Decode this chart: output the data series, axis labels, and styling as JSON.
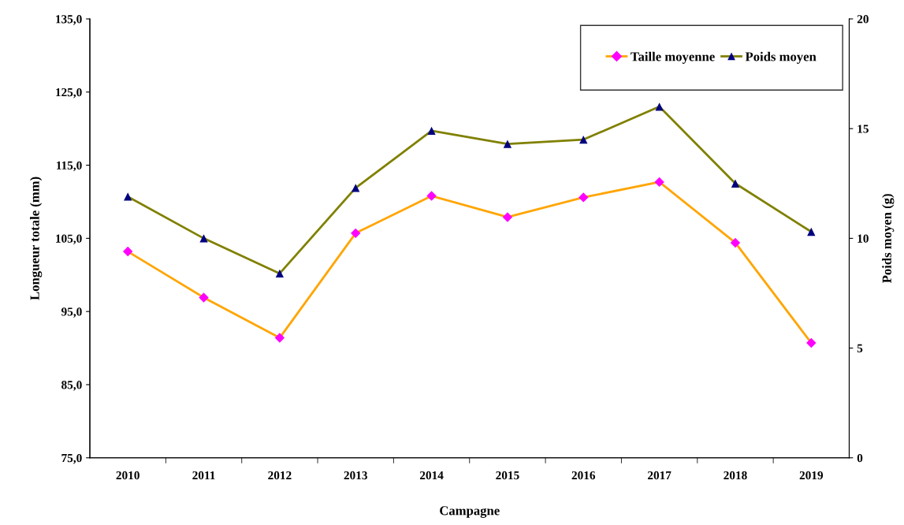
{
  "chart_data": {
    "type": "line",
    "xlabel": "Campagne",
    "ylabel": "Longueur totale (mm)",
    "y2label": "Poids moyen (g)",
    "categories": [
      "2010",
      "2011",
      "2012",
      "2013",
      "2014",
      "2015",
      "2016",
      "2017",
      "2018",
      "2019"
    ],
    "series": [
      {
        "name": "Taille moyenne",
        "color": "#ffa500",
        "marker": "diamond",
        "colors": [
          "#ff00ff",
          "#ff00ff",
          "#ff00ff",
          "#ff00ff",
          "#ff00ff",
          "#ff00ff",
          "#ff00ff",
          "#ff00ff",
          "#ff00ff",
          "#ff00ff"
        ],
        "values": [
          103.2,
          96.9,
          91.4,
          105.7,
          110.8,
          107.9,
          110.6,
          112.7,
          104.4,
          90.7
        ]
      },
      {
        "name": "Poids moyen",
        "color": "#808000",
        "marker": "triangle",
        "axis": "y2",
        "colors": [
          "#000080",
          "#000080",
          "#000080",
          "#000080",
          "#000080",
          "#000080",
          "#000080",
          "#000080",
          "#000080",
          "#000080"
        ],
        "values": [
          11.9,
          10.0,
          8.4,
          12.3,
          14.9,
          14.3,
          14.5,
          16.0,
          12.5,
          10.3
        ]
      }
    ],
    "ylim": [
      75,
      135
    ],
    "yticks": [
      {
        "value": 75,
        "label": "75,0"
      },
      {
        "value": 85,
        "label": "85,0"
      },
      {
        "value": 95,
        "label": "95,0"
      },
      {
        "value": 105,
        "label": "105,0"
      },
      {
        "value": 115,
        "label": "115,0"
      },
      {
        "value": 125,
        "label": "125,0"
      },
      {
        "value": 135,
        "label": "135,0"
      }
    ],
    "y2lim": [
      0,
      20
    ],
    "y2ticks": [
      0,
      5,
      10,
      15,
      20
    ],
    "grid": false,
    "legend": "top right",
    "line_style": "solid"
  }
}
